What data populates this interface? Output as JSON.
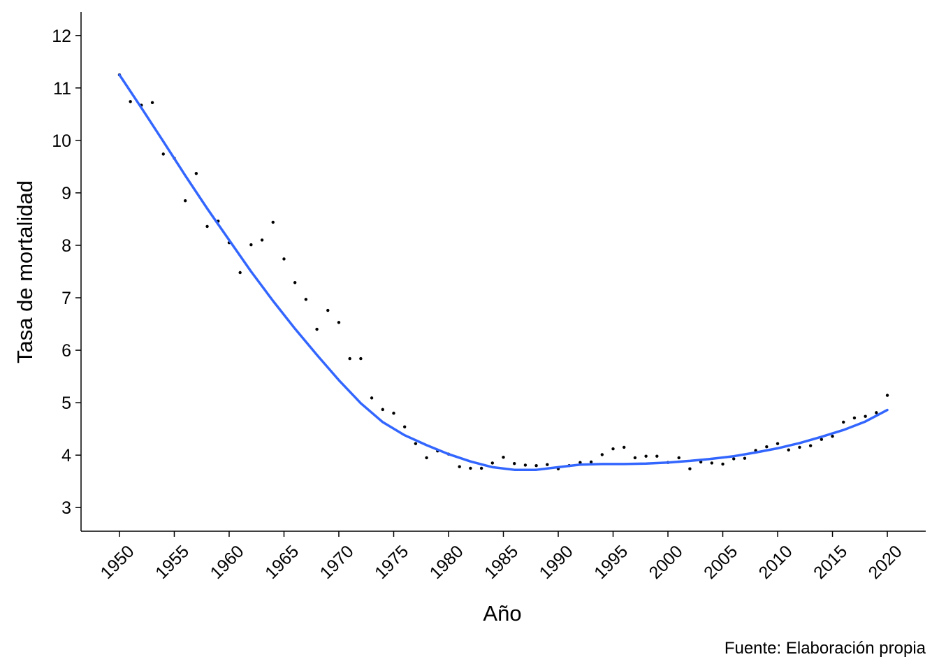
{
  "chart_data": {
    "type": "scatter",
    "title": "",
    "xlabel": "Año",
    "ylabel": "Tasa de mortalidad",
    "caption": "Fuente: Elaboración propia",
    "xlim": [
      1946.5,
      2023.5
    ],
    "ylim": [
      2.55,
      12.45
    ],
    "x_ticks": [
      1950,
      1955,
      1960,
      1965,
      1970,
      1975,
      1980,
      1985,
      1990,
      1995,
      2000,
      2005,
      2010,
      2015,
      2020
    ],
    "y_ticks": [
      3,
      4,
      5,
      6,
      7,
      8,
      9,
      10,
      11,
      12
    ],
    "grid": false,
    "legend": "none",
    "colors": {
      "points": "#000000",
      "smooth": "#3366FF",
      "axis": "#000000"
    },
    "series": [
      {
        "kind": "points",
        "x": [
          1950,
          1951,
          1952,
          1953,
          1954,
          1955,
          1956,
          1957,
          1958,
          1959,
          1960,
          1961,
          1962,
          1963,
          1964,
          1965,
          1966,
          1967,
          1968,
          1969,
          1970,
          1971,
          1972,
          1973,
          1974,
          1975,
          1976,
          1977,
          1978,
          1979,
          1980,
          1981,
          1982,
          1983,
          1984,
          1985,
          1986,
          1987,
          1988,
          1989,
          1990,
          1991,
          1992,
          1993,
          1994,
          1995,
          1996,
          1997,
          1998,
          1999,
          2000,
          2001,
          2002,
          2003,
          2004,
          2005,
          2006,
          2007,
          2008,
          2009,
          2010,
          2011,
          2012,
          2013,
          2014,
          2015,
          2016,
          2017,
          2018,
          2019,
          2020
        ],
        "y": [
          11.25,
          10.74,
          10.67,
          10.72,
          9.74,
          9.66,
          8.85,
          9.37,
          8.36,
          8.46,
          8.05,
          7.48,
          8.01,
          8.1,
          8.44,
          7.74,
          7.29,
          6.97,
          6.4,
          6.76,
          6.53,
          5.84,
          5.84,
          5.09,
          4.87,
          4.8,
          4.54,
          4.22,
          3.95,
          4.08,
          4.02,
          3.78,
          3.75,
          3.75,
          3.85,
          3.96,
          3.84,
          3.81,
          3.8,
          3.82,
          3.74,
          3.8,
          3.86,
          3.87,
          4.01,
          4.12,
          4.15,
          3.95,
          3.98,
          3.98,
          3.86,
          3.95,
          3.74,
          3.87,
          3.85,
          3.83,
          3.93,
          3.94,
          4.09,
          4.16,
          4.22,
          4.1,
          4.15,
          4.18,
          4.3,
          4.36,
          4.63,
          4.71,
          4.74,
          4.81,
          5.14
        ]
      },
      {
        "kind": "smooth",
        "x": [
          1950,
          1952,
          1954,
          1956,
          1958,
          1960,
          1962,
          1964,
          1966,
          1968,
          1970,
          1972,
          1974,
          1976,
          1978,
          1980,
          1982,
          1984,
          1986,
          1988,
          1990,
          1992,
          1994,
          1996,
          1998,
          2000,
          2002,
          2004,
          2006,
          2008,
          2010,
          2012,
          2014,
          2016,
          2018,
          2020
        ],
        "y": [
          11.25,
          10.62,
          9.98,
          9.33,
          8.7,
          8.1,
          7.5,
          6.94,
          6.41,
          5.91,
          5.43,
          4.99,
          4.63,
          4.38,
          4.19,
          4.02,
          3.88,
          3.77,
          3.72,
          3.72,
          3.77,
          3.82,
          3.83,
          3.83,
          3.84,
          3.86,
          3.89,
          3.93,
          3.98,
          4.05,
          4.13,
          4.23,
          4.35,
          4.48,
          4.64,
          4.86
        ]
      }
    ]
  }
}
